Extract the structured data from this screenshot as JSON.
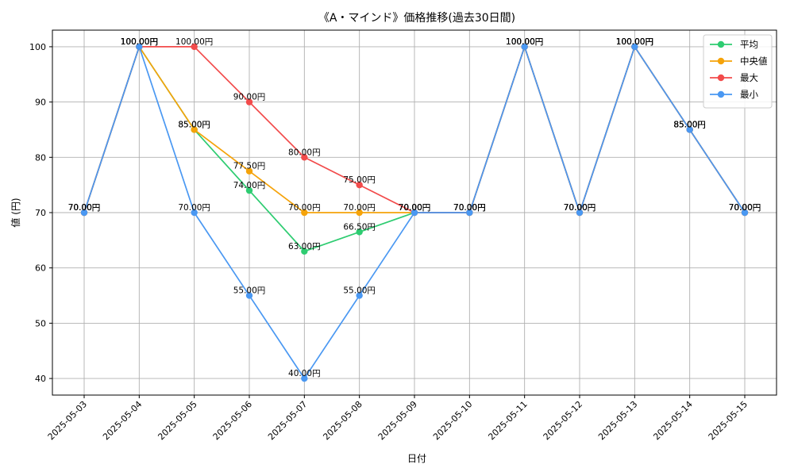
{
  "chart_data": {
    "type": "line",
    "title": "《A・マインド》価格推移(過去30日間)",
    "xlabel": "日付",
    "ylabel": "値 (円)",
    "ylim": [
      37,
      103
    ],
    "yticks": [
      40,
      50,
      60,
      70,
      80,
      90,
      100
    ],
    "grid": true,
    "legend_position": "top-right",
    "value_suffix": "円",
    "categories": [
      "2025-05-03",
      "2025-05-04",
      "2025-05-05",
      "2025-05-06",
      "2025-05-07",
      "2025-05-08",
      "2025-05-09",
      "2025-05-10",
      "2025-05-11",
      "2025-05-12",
      "2025-05-13",
      "2025-05-14",
      "2025-05-15"
    ],
    "series": [
      {
        "name": "平均",
        "color": "#2ecc71",
        "values": [
          70,
          100,
          85,
          74,
          63,
          66.5,
          70,
          70,
          100,
          70,
          100,
          85,
          70
        ]
      },
      {
        "name": "中央値",
        "color": "#f5a30a",
        "values": [
          70,
          100,
          85,
          77.5,
          70,
          70,
          70,
          70,
          100,
          70,
          100,
          85,
          70
        ]
      },
      {
        "name": "最大",
        "color": "#f24b4b",
        "values": [
          70,
          100,
          100,
          90,
          80,
          75,
          70,
          70,
          100,
          70,
          100,
          85,
          70
        ]
      },
      {
        "name": "最小",
        "color": "#4a98f2",
        "values": [
          70,
          100,
          70,
          55,
          40,
          55,
          70,
          70,
          100,
          70,
          100,
          85,
          70
        ]
      }
    ]
  }
}
